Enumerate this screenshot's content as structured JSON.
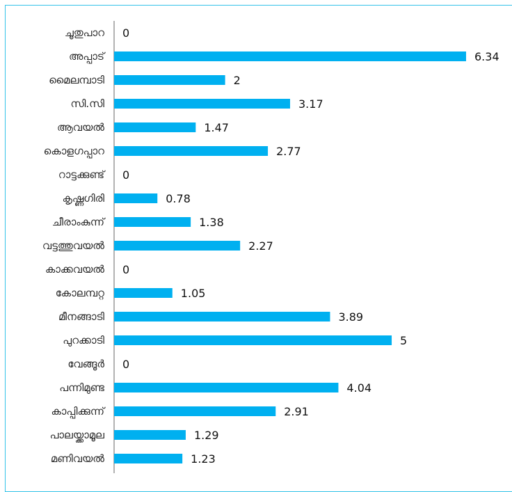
{
  "chart_data": {
    "type": "bar",
    "orientation": "horizontal",
    "categories": [
      "ചൂതുപാറ",
      "അപ്പാട്",
      "മൈലമ്പാടി",
      "സി.സി",
      "ആവയൽ",
      "കൊളഗപ്പാറ",
      "റാട്ടക്കുണ്ട്",
      "കൃഷ്ണഗിരി",
      "ചീരാംകുന്ന്",
      "വട്ടത്തുവയൽ",
      "കാക്കവയൽ",
      "കോലമ്പറ്റ",
      "മീനങ്ങാടി",
      "പുറക്കാടി",
      "വേങ്ങൂർ",
      "പന്നിമുണ്ട",
      "കാപ്പിക്കുന്ന്",
      "പാലയ്ക്കാമൂല",
      "മണിവയൽ"
    ],
    "values": [
      0,
      6.34,
      2,
      3.17,
      1.47,
      2.77,
      0,
      0.78,
      1.38,
      2.27,
      0,
      1.05,
      3.89,
      5,
      0,
      4.04,
      2.91,
      1.29,
      1.23
    ],
    "value_labels": [
      "0",
      "6.34",
      "2",
      "3.17",
      "1.47",
      "2.77",
      "0",
      "0.78",
      "1.38",
      "2.27",
      "0",
      "1.05",
      "3.89",
      "5",
      "0",
      "4.04",
      "2.91",
      "1.29",
      "1.23"
    ],
    "xlim": [
      0,
      6.34
    ],
    "grid": false,
    "colors": {
      "bar": "#00b0f0",
      "axis": "#7f7f7f",
      "frame": "#34c3e8"
    }
  }
}
